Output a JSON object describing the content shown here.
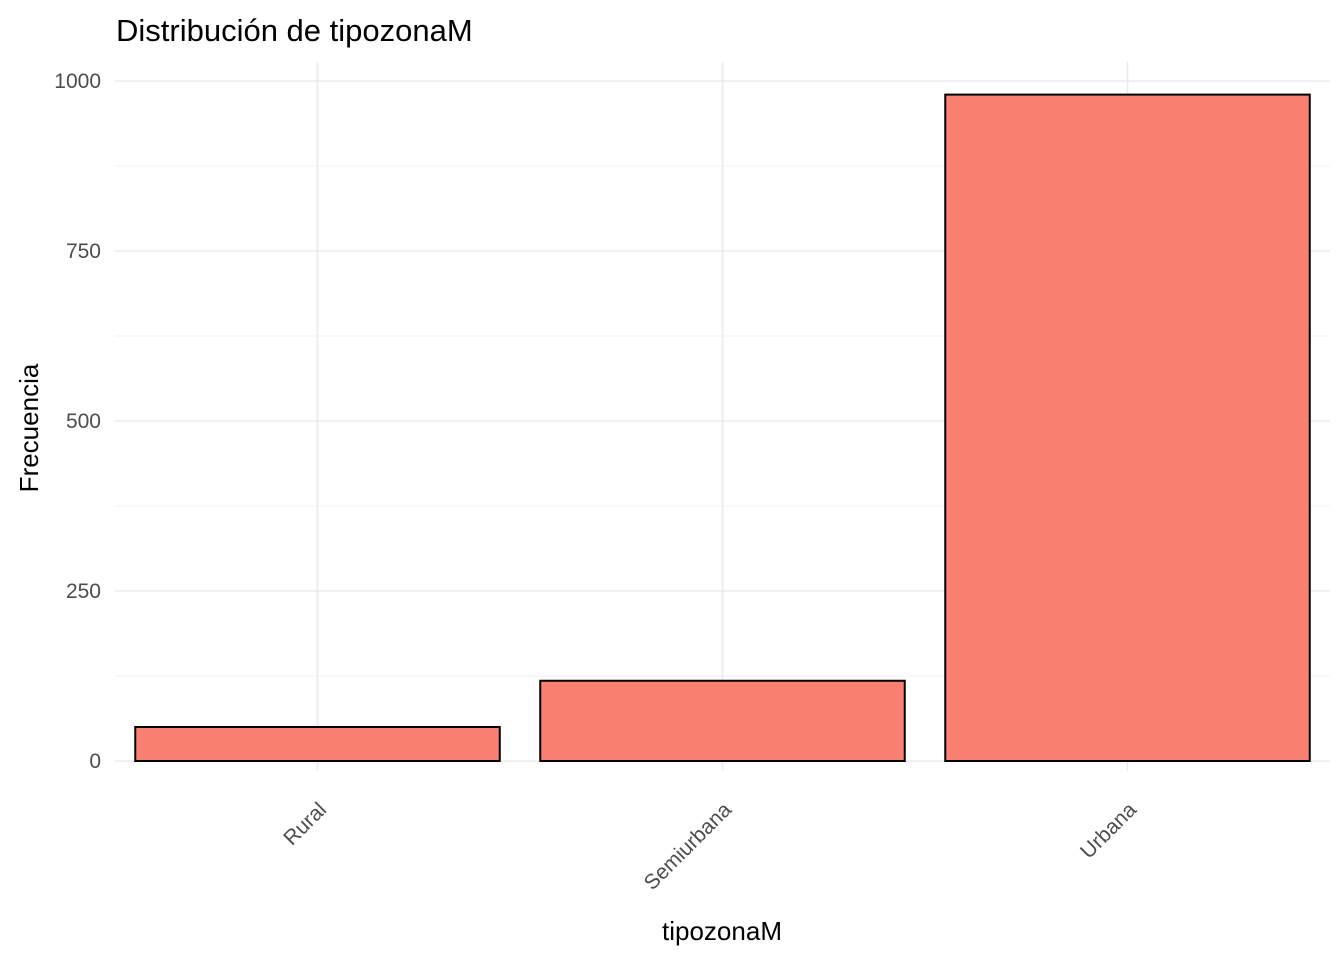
{
  "chart_data": {
    "type": "bar",
    "title": "Distribución de tipozonaM",
    "xlabel": "tipozonaM",
    "ylabel": "Frecuencia",
    "categories": [
      "Rural",
      "Semiurbana",
      "Urbana"
    ],
    "values": [
      50,
      118,
      980
    ],
    "ylim": [
      0,
      1000
    ],
    "yticks": [
      0,
      250,
      500,
      750,
      1000
    ],
    "bar_color": "#fa8072",
    "grid": true,
    "legend": "none"
  }
}
